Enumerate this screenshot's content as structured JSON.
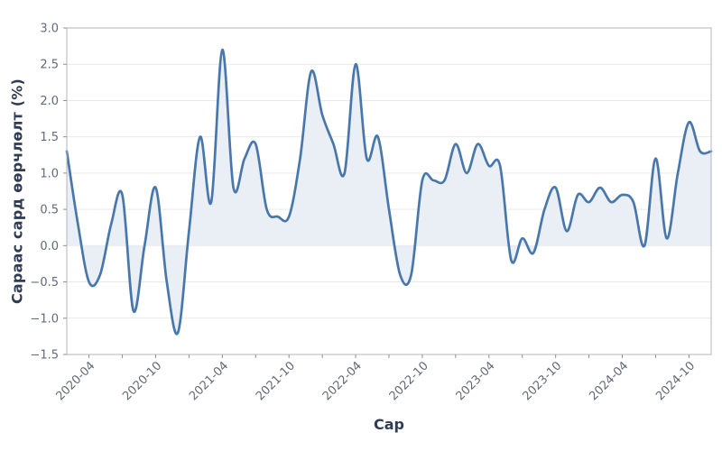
{
  "chart_data": {
    "type": "line",
    "title": "",
    "xlabel": "Сар",
    "ylabel": "Сараас сард өөрчлөлт (%)",
    "x": [
      "2020-02",
      "2020-03",
      "2020-04",
      "2020-05",
      "2020-06",
      "2020-07",
      "2020-08",
      "2020-09",
      "2020-10",
      "2020-11",
      "2020-12",
      "2021-01",
      "2021-02",
      "2021-03",
      "2021-04",
      "2021-05",
      "2021-06",
      "2021-07",
      "2021-08",
      "2021-09",
      "2021-10",
      "2021-11",
      "2021-12",
      "2022-01",
      "2022-02",
      "2022-03",
      "2022-04",
      "2022-05",
      "2022-06",
      "2022-07",
      "2022-08",
      "2022-09",
      "2022-10",
      "2022-11",
      "2022-12",
      "2023-01",
      "2023-02",
      "2023-03",
      "2023-04",
      "2023-05",
      "2023-06",
      "2023-07",
      "2023-08",
      "2023-09",
      "2023-10",
      "2023-11",
      "2023-12",
      "2024-01",
      "2024-02",
      "2024-03",
      "2024-04",
      "2024-05",
      "2024-06",
      "2024-07",
      "2024-08",
      "2024-09",
      "2024-10",
      "2024-11",
      "2024-12"
    ],
    "values": [
      1.3,
      0.3,
      -0.5,
      -0.4,
      0.3,
      0.7,
      -0.9,
      0.0,
      0.8,
      -0.5,
      -1.2,
      0.2,
      1.5,
      0.6,
      2.7,
      0.8,
      1.2,
      1.4,
      0.5,
      0.4,
      0.4,
      1.2,
      2.4,
      1.8,
      1.4,
      1.0,
      2.5,
      1.2,
      1.5,
      0.5,
      -0.4,
      -0.4,
      0.9,
      0.9,
      0.9,
      1.4,
      1.0,
      1.4,
      1.1,
      1.1,
      -0.2,
      0.1,
      -0.1,
      0.5,
      0.8,
      0.2,
      0.7,
      0.6,
      0.8,
      0.6,
      0.7,
      0.6,
      0.0,
      1.2,
      0.1,
      1.0,
      1.7,
      1.3,
      1.3
    ],
    "ylim": [
      -1.5,
      3.0
    ],
    "y_tick_labels": [
      "3.0",
      "2.5",
      "2.0",
      "1.5",
      "1.0",
      "0.5",
      "0.0",
      "−0.5",
      "−1.0",
      "−1.5"
    ],
    "y_tick_values": [
      3.0,
      2.5,
      2.0,
      1.5,
      1.0,
      0.5,
      0.0,
      -0.5,
      -1.0,
      -1.5
    ],
    "x_major_ticks": [
      "2020-04",
      "2020-10",
      "2021-04",
      "2021-10",
      "2022-04",
      "2022-10",
      "2023-04",
      "2023-10",
      "2024-04",
      "2024-10"
    ],
    "x_minor_ticks": [
      "2020-04",
      "2020-07",
      "2020-10",
      "2021-01",
      "2021-04",
      "2021-07",
      "2021-10",
      "2022-01",
      "2022-04",
      "2022-07",
      "2022-10",
      "2023-01",
      "2023-04",
      "2023-07",
      "2023-10",
      "2024-01",
      "2024-04",
      "2024-07",
      "2024-10"
    ],
    "grid": true,
    "legend": false,
    "fill_baseline": 0,
    "colors": {
      "line": "#4878ab",
      "fill": "#eaeef5",
      "gridline": "#e9e9ec",
      "spine": "#b3b6bc",
      "tick_mark": "#8b9097",
      "tick_label": "#636a76",
      "axis_label": "#2f3c53"
    }
  }
}
